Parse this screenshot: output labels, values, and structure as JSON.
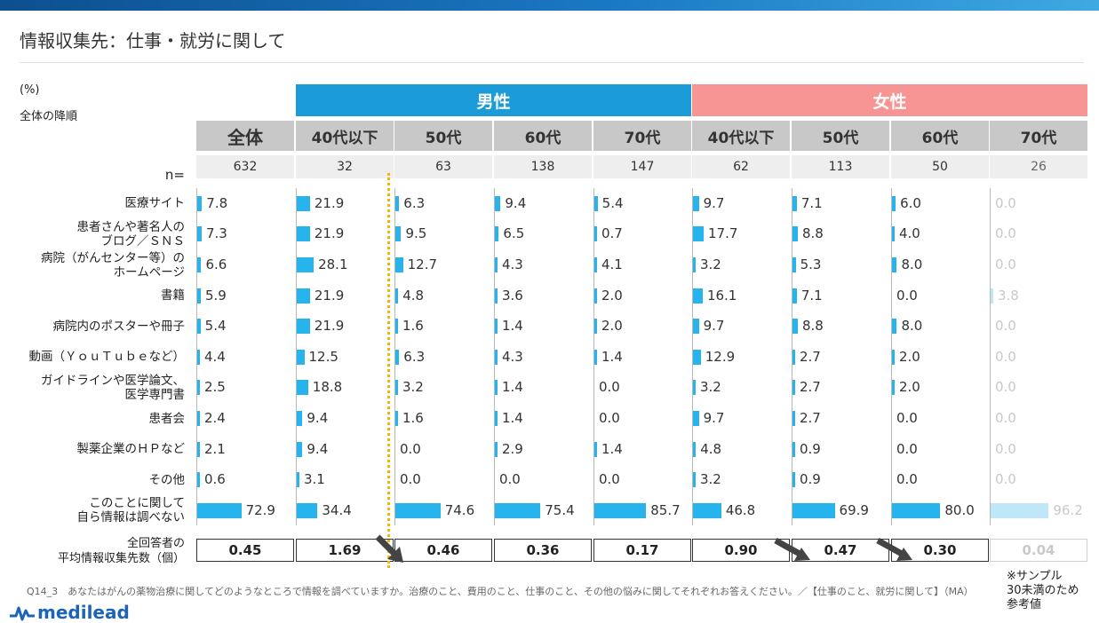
{
  "title": "情報収集先：仕事・就労に関して",
  "unit_label": "(%)",
  "sort_note": "全体の降順",
  "n_label": "n=",
  "avg_label_line1": "全回答者の",
  "avg_label_line2": "平均情報収集先数（個）",
  "question_text": "Q14_3　あなたはがんの薬物治療に関してどのようなところで情報を調べていますか。治療のこと、費用のこと、仕事のこと、その他の悩みに関してそれぞれお答えください。／【仕事のこと、就労に関して】（MA）",
  "reference_note": [
    "※サンプル",
    "30未満のため",
    "参考値"
  ],
  "logo_text": "medilead",
  "colors": {
    "male": "#1b9bd8",
    "female": "#f79595",
    "bar": "#27b4ec",
    "bar_reference": "#bfe7f8",
    "header_gray": "#c8c8c8",
    "n_gray": "#eeeeee",
    "dotted_line": "#f7b500"
  },
  "chart_data": {
    "type": "bar",
    "orientation": "horizontal",
    "xlim": [
      0,
      100
    ],
    "groups": [
      {
        "name": "男性",
        "columns": [
          1,
          2,
          3,
          4
        ]
      },
      {
        "name": "女性",
        "columns": [
          5,
          6,
          7,
          8
        ]
      }
    ],
    "columns": [
      {
        "label": "全体",
        "n": "632",
        "avg": "0.45",
        "reference": false
      },
      {
        "label": "40代以下",
        "n": "32",
        "avg": "1.69",
        "reference": false
      },
      {
        "label": "50代",
        "n": "63",
        "avg": "0.46",
        "reference": false
      },
      {
        "label": "60代",
        "n": "138",
        "avg": "0.36",
        "reference": false
      },
      {
        "label": "70代",
        "n": "147",
        "avg": "0.17",
        "reference": false
      },
      {
        "label": "40代以下",
        "n": "62",
        "avg": "0.90",
        "reference": false
      },
      {
        "label": "50代",
        "n": "113",
        "avg": "0.47",
        "reference": false
      },
      {
        "label": "60代",
        "n": "50",
        "avg": "0.30",
        "reference": false
      },
      {
        "label": "70代",
        "n": "26",
        "avg": "0.04",
        "reference": true
      }
    ],
    "categories": [
      [
        "医療サイト"
      ],
      [
        "患者さんや著名人の",
        "ブログ／ＳＮＳ"
      ],
      [
        "病院（がんセンター等）の",
        "ホームページ"
      ],
      [
        "書籍"
      ],
      [
        "病院内のポスターや冊子"
      ],
      [
        "動画（ＹｏｕＴｕｂｅなど）"
      ],
      [
        "ガイドラインや医学論文、",
        "医学専門書"
      ],
      [
        "患者会"
      ],
      [
        "製薬企業のＨＰなど"
      ],
      [
        "その他"
      ],
      [
        "このことに関して",
        "自ら情報は調べない"
      ]
    ],
    "values": [
      [
        "7.8",
        "21.9",
        "6.3",
        "9.4",
        "5.4",
        "9.7",
        "7.1",
        "6.0",
        "0.0"
      ],
      [
        "7.3",
        "21.9",
        "9.5",
        "6.5",
        "0.7",
        "17.7",
        "8.8",
        "4.0",
        "0.0"
      ],
      [
        "6.6",
        "28.1",
        "12.7",
        "4.3",
        "4.1",
        "3.2",
        "5.3",
        "8.0",
        "0.0"
      ],
      [
        "5.9",
        "21.9",
        "4.8",
        "3.6",
        "2.0",
        "16.1",
        "7.1",
        "0.0",
        "3.8"
      ],
      [
        "5.4",
        "21.9",
        "1.6",
        "1.4",
        "2.0",
        "9.7",
        "8.8",
        "8.0",
        "0.0"
      ],
      [
        "4.4",
        "12.5",
        "6.3",
        "4.3",
        "1.4",
        "12.9",
        "2.7",
        "2.0",
        "0.0"
      ],
      [
        "2.5",
        "18.8",
        "3.2",
        "1.4",
        "0.0",
        "3.2",
        "2.7",
        "2.0",
        "0.0"
      ],
      [
        "2.4",
        "9.4",
        "1.6",
        "1.4",
        "0.0",
        "9.7",
        "2.7",
        "0.0",
        "0.0"
      ],
      [
        "2.1",
        "9.4",
        "0.0",
        "2.9",
        "1.4",
        "4.8",
        "0.9",
        "0.0",
        "0.0"
      ],
      [
        "0.6",
        "3.1",
        "0.0",
        "0.0",
        "0.0",
        "3.2",
        "0.9",
        "0.0",
        "0.0"
      ],
      [
        "72.9",
        "34.4",
        "74.6",
        "75.4",
        "85.7",
        "46.8",
        "69.9",
        "80.0",
        "96.2"
      ]
    ]
  }
}
